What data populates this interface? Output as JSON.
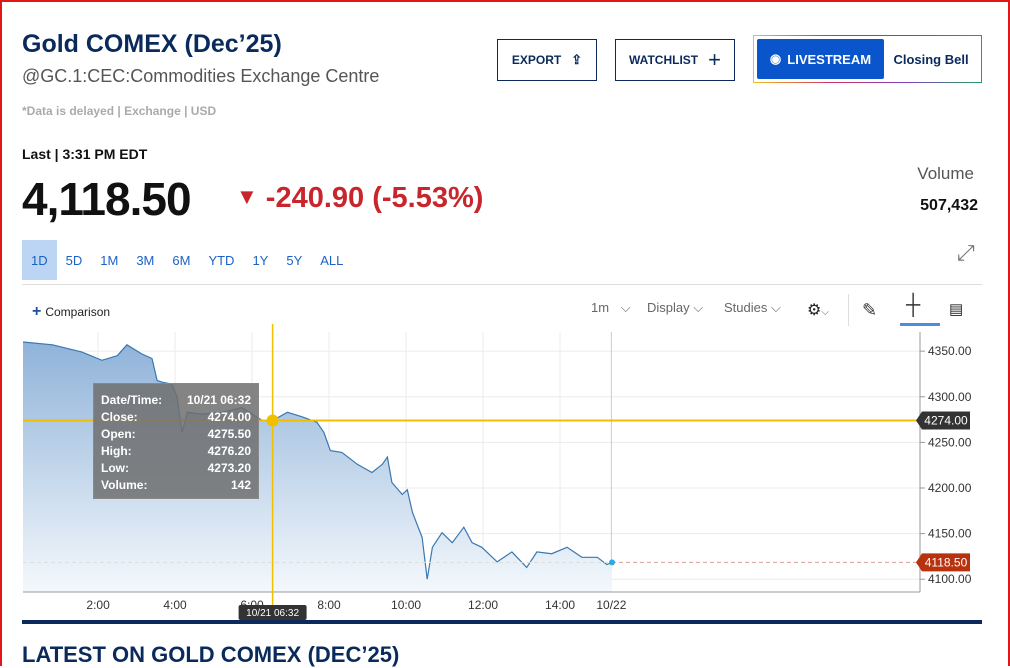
{
  "header": {
    "title": "Gold COMEX (Dec’25)",
    "subtitle": "@GC.1:CEC:Commodities Exchange Centre",
    "delay_note": "*Data is delayed | Exchange | USD"
  },
  "buttons": {
    "export": "EXPORT",
    "watchlist": "WATCHLIST",
    "livestream": "LIVESTREAM",
    "closing_bell": "Closing Bell"
  },
  "quote": {
    "last_label": "Last | 3:31 PM EDT",
    "price": "4,118.50",
    "change": "-240.90 (-5.53%)",
    "direction": "down",
    "volume_label": "Volume",
    "volume": "507,432"
  },
  "ranges": [
    {
      "label": "1D",
      "active": true
    },
    {
      "label": "5D"
    },
    {
      "label": "1M"
    },
    {
      "label": "3M"
    },
    {
      "label": "6M"
    },
    {
      "label": "YTD"
    },
    {
      "label": "1Y"
    },
    {
      "label": "5Y"
    },
    {
      "label": "ALL"
    }
  ],
  "toolbar": {
    "comparison": "Comparison",
    "interval": "1m",
    "display": "Display",
    "studies": "Studies",
    "icons": [
      "gear-icon",
      "pencil-icon",
      "crosshair-icon",
      "notes-icon"
    ]
  },
  "tooltip": {
    "datetime_label": "Date/Time:",
    "datetime": "10/21 06:32",
    "close_label": "Close:",
    "close": "4274.00",
    "open_label": "Open:",
    "open": "4275.50",
    "high_label": "High:",
    "high": "4276.20",
    "low_label": "Low:",
    "low": "4273.20",
    "volume_label": "Volume:",
    "volume": "142"
  },
  "colors": {
    "accent": "#0a2a5c",
    "down": "#c8252c",
    "line": "#3a78b0",
    "crosshair": "#f0c000",
    "last_price_tag": "#b8320e"
  },
  "chart_data": {
    "type": "area",
    "ylim": [
      4086,
      4371
    ],
    "xlim": [
      "00:03",
      "23:21"
    ],
    "grid": true,
    "y_ticks": [
      "4350.00",
      "4300.00",
      "4250.00",
      "4200.00",
      "4150.00",
      "4100.00"
    ],
    "x_ticks": [
      {
        "t": "02:00",
        "label": "2:00"
      },
      {
        "t": "04:00",
        "label": "4:00"
      },
      {
        "t": "06:00",
        "label": "6:00"
      },
      {
        "t": "08:00",
        "label": "8:00"
      },
      {
        "t": "10:00",
        "label": "10:00"
      },
      {
        "t": "12:00",
        "label": "12:00"
      },
      {
        "t": "14:00",
        "label": "14:00"
      },
      {
        "t": "15:20",
        "label": "10/22"
      }
    ],
    "crosshair": {
      "time": "06:32",
      "time_label": "10/21 06:32",
      "price": "4274.00"
    },
    "last_price": "4118.50",
    "points": [
      [
        "00:03",
        4360
      ],
      [
        "00:49",
        4357
      ],
      [
        "01:35",
        4349
      ],
      [
        "02:06",
        4340
      ],
      [
        "02:30",
        4345
      ],
      [
        "02:45",
        4357
      ],
      [
        "03:08",
        4347
      ],
      [
        "03:24",
        4342
      ],
      [
        "03:32",
        4318
      ],
      [
        "03:40",
        4316
      ],
      [
        "03:55",
        4314
      ],
      [
        "04:03",
        4300
      ],
      [
        "04:11",
        4261
      ],
      [
        "04:19",
        4283
      ],
      [
        "04:42",
        4281
      ],
      [
        "05:13",
        4283
      ],
      [
        "05:44",
        4288
      ],
      [
        "06:16",
        4274
      ],
      [
        "06:32",
        4274
      ],
      [
        "06:55",
        4283
      ],
      [
        "07:18",
        4278
      ],
      [
        "07:41",
        4272
      ],
      [
        "07:52",
        4261
      ],
      [
        "08:02",
        4241
      ],
      [
        "08:20",
        4239
      ],
      [
        "08:44",
        4226
      ],
      [
        "09:07",
        4217
      ],
      [
        "09:23",
        4226
      ],
      [
        "09:31",
        4234
      ],
      [
        "09:38",
        4206
      ],
      [
        "09:54",
        4193
      ],
      [
        "10:02",
        4198
      ],
      [
        "10:10",
        4173
      ],
      [
        "10:25",
        4146
      ],
      [
        "10:33",
        4100
      ],
      [
        "10:41",
        4135
      ],
      [
        "10:56",
        4151
      ],
      [
        "11:12",
        4140
      ],
      [
        "11:30",
        4157
      ],
      [
        "11:43",
        4140
      ],
      [
        "11:58",
        4135
      ],
      [
        "12:22",
        4119
      ],
      [
        "12:45",
        4130
      ],
      [
        "13:08",
        4113
      ],
      [
        "13:24",
        4130
      ],
      [
        "13:47",
        4128
      ],
      [
        "14:11",
        4135
      ],
      [
        "14:34",
        4124
      ],
      [
        "14:58",
        4124
      ],
      [
        "15:13",
        4116
      ],
      [
        "15:21",
        4118.5
      ]
    ]
  },
  "latest": {
    "heading": "LATEST ON GOLD COMEX (DEC’25)"
  }
}
